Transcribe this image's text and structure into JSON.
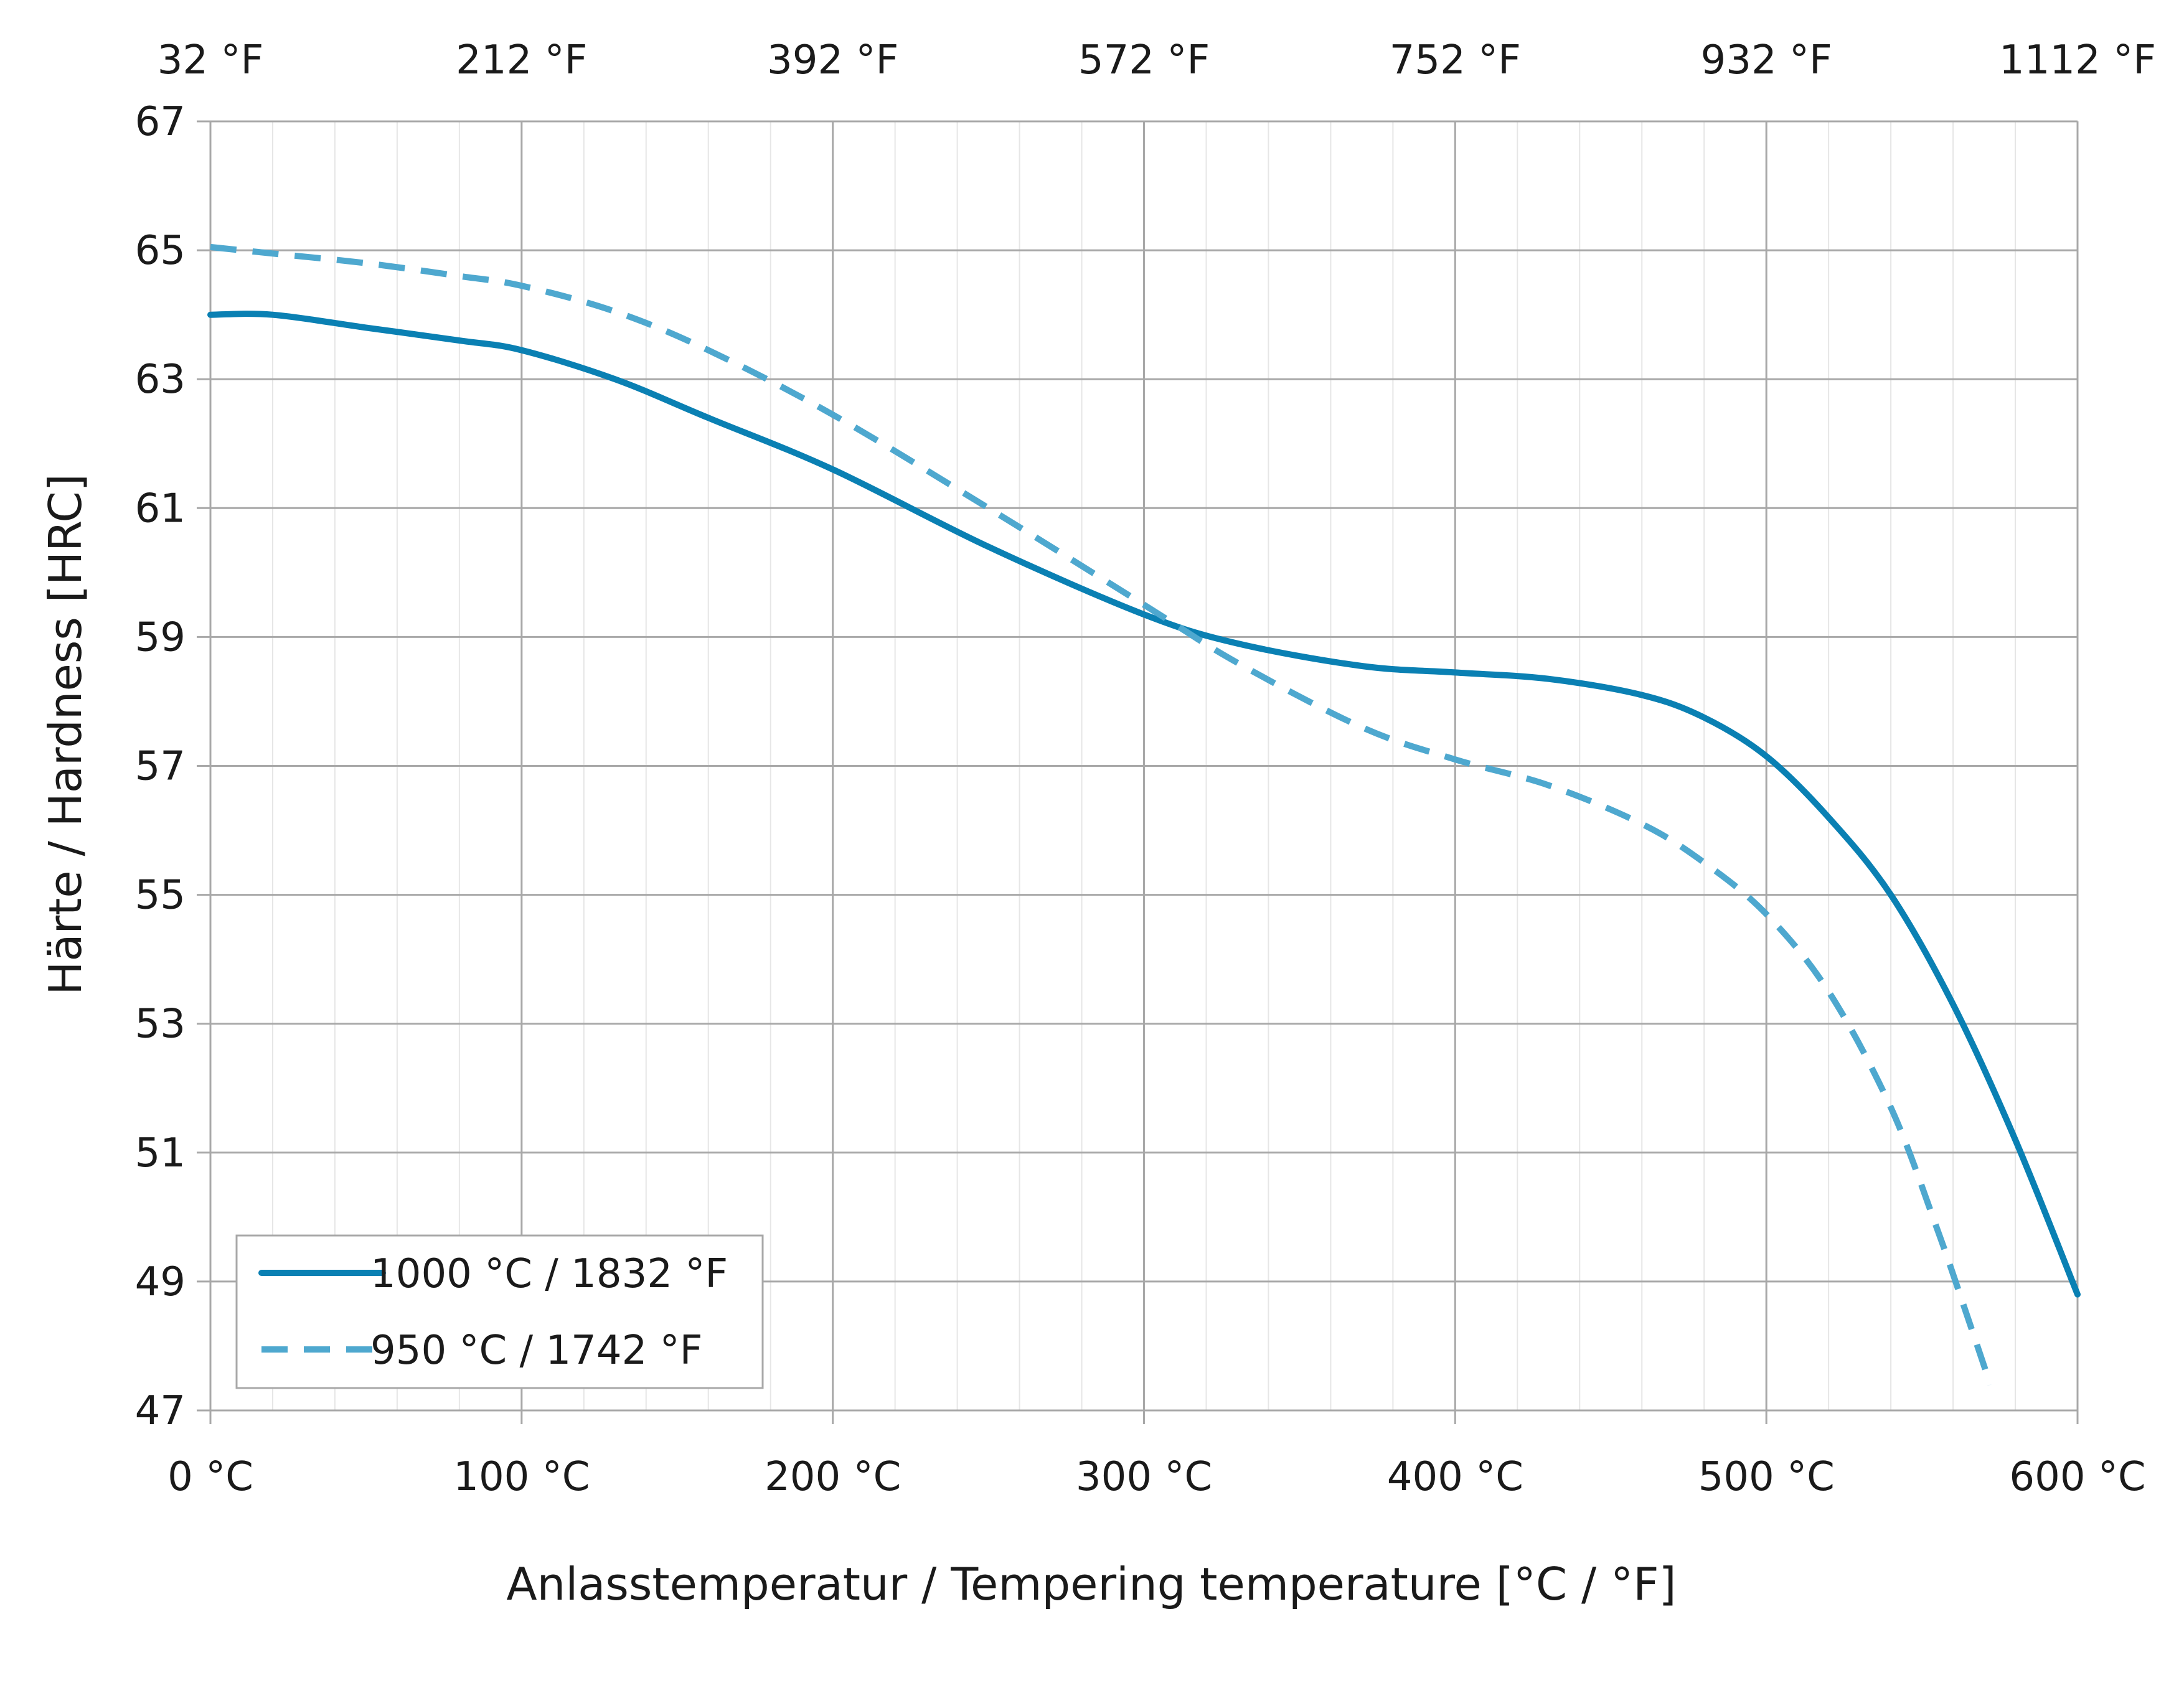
{
  "chart_data": {
    "type": "line",
    "title": "",
    "xlabel": "Anlasstemperatur / Tempering temperature [°C / °F]",
    "ylabel": "Härte / Hardness [HRC]",
    "xlim": [
      0,
      600
    ],
    "ylim": [
      47,
      67
    ],
    "x_ticks": [
      0,
      100,
      200,
      300,
      400,
      500,
      600
    ],
    "x_tick_labels": [
      "0 °C",
      "100 °C",
      "200 °C",
      "300 °C",
      "400 °C",
      "500 °C",
      "600 °C"
    ],
    "x2_tick_labels": [
      "32 °F",
      "212 °F",
      "392 °F",
      "572 °F",
      "752 °F",
      "932 °F",
      "1112 °F"
    ],
    "y_ticks": [
      47,
      49,
      51,
      53,
      55,
      57,
      59,
      61,
      63,
      65,
      67
    ],
    "y_tick_labels": [
      "47",
      "49",
      "51",
      "53",
      "55",
      "57",
      "59",
      "61",
      "63",
      "65",
      "67"
    ],
    "x_minor_step": 20,
    "grid": true,
    "legend_position": "bottom-left",
    "series": [
      {
        "name": "1000 °C / 1832 °F",
        "style": "solid",
        "color": "#0a80b3",
        "x": [
          0,
          20,
          50,
          80,
          100,
          130,
          160,
          200,
          250,
          300,
          330,
          370,
          400,
          430,
          460,
          480,
          500,
          520,
          540,
          560,
          580,
          600
        ],
        "y": [
          64.0,
          64.0,
          63.8,
          63.6,
          63.45,
          63.0,
          62.4,
          61.6,
          60.4,
          59.35,
          58.9,
          58.55,
          58.45,
          58.35,
          58.1,
          57.75,
          57.15,
          56.2,
          55.0,
          53.3,
          51.2,
          48.8
        ]
      },
      {
        "name": "950 °C / 1742 °F",
        "style": "dashed",
        "color": "#4ea8cf",
        "x": [
          0,
          20,
          50,
          80,
          100,
          130,
          160,
          200,
          250,
          300,
          330,
          370,
          400,
          430,
          460,
          480,
          500,
          520,
          540,
          555,
          565,
          572
        ],
        "y": [
          65.05,
          64.95,
          64.8,
          64.6,
          64.45,
          64.05,
          63.45,
          62.45,
          61.0,
          59.5,
          58.6,
          57.6,
          57.1,
          56.7,
          56.1,
          55.5,
          54.7,
          53.5,
          51.7,
          49.8,
          48.4,
          47.4
        ]
      }
    ]
  }
}
